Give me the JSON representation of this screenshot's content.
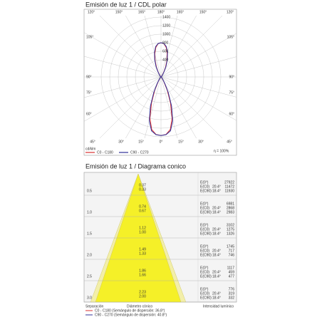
{
  "polar": {
    "title": "Emisión de luz 1 / CDL polar",
    "angle_labels_top": [
      "120°",
      "150°",
      "165°",
      "180°",
      "165°",
      "150°",
      "120°"
    ],
    "angle_labels_side": [
      "105°",
      "90°",
      "75°",
      "60°"
    ],
    "angle_labels_bottom": [
      "45°",
      "30°",
      "15°",
      "0°",
      "15°",
      "30°",
      "45°"
    ],
    "radial_ticks": [
      400,
      600,
      800,
      1000,
      1200,
      1400
    ],
    "unit": "cd/klm",
    "efficiency": "η = 100%",
    "angles": [
      0,
      5,
      10,
      15,
      20,
      25,
      30,
      40,
      60,
      90,
      120,
      140,
      150,
      155,
      160,
      165,
      170,
      175,
      180
    ],
    "series": [
      {
        "name": "C0 - C180",
        "color": "#d83030",
        "values": [
          1370,
          1350,
          1250,
          1000,
          650,
          350,
          150,
          40,
          10,
          0,
          10,
          40,
          130,
          250,
          400,
          560,
          700,
          780,
          800
        ]
      },
      {
        "name": "C90 - C270",
        "color": "#303098",
        "values": [
          1370,
          1355,
          1280,
          1060,
          720,
          400,
          180,
          50,
          12,
          0,
          12,
          50,
          150,
          280,
          430,
          590,
          720,
          785,
          800
        ]
      }
    ]
  },
  "cone": {
    "title": "Emisión de luz 1 / Diagrama conico",
    "e_label": "E(0°)",
    "c0_label": "E(C0)",
    "c90_label": "E(C90)",
    "c0_angle": "20.4°",
    "c90_angle": "18.4°",
    "rows": [
      {
        "height": 0.5,
        "d0": 0.37,
        "d90": 0.33,
        "e0": 27922,
        "ec0": 11472,
        "ec90": 11930
      },
      {
        "height": {
          "value": 1,
          "label": "1.0"
        },
        "d0": 0.74,
        "d90": 0.67,
        "e0": 6981,
        "ec0": 2868,
        "ec90": 2983
      },
      {
        "height": 1.5,
        "d0": 1.12,
        "d90": {
          "value": 1,
          "label": "1.00"
        },
        "e0": 3102,
        "ec0": 1275,
        "ec90": 1326
      },
      {
        "height": {
          "value": 2,
          "label": "2.0"
        },
        "d0": 1.49,
        "d90": 1.33,
        "e0": 1745,
        "ec0": 717,
        "ec90": 746
      },
      {
        "height": 2.5,
        "d0": 1.86,
        "d90": 1.66,
        "e0": 1117,
        "ec0": 459,
        "ec90": 477
      },
      {
        "height": {
          "value": 3,
          "label": "3.0"
        },
        "d0": 2.23,
        "d90": {
          "value": 2,
          "label": "2.00"
        },
        "e0": 776,
        "ec0": 319,
        "ec90": 332
      }
    ],
    "col_separation": "Separación",
    "col_diameter": "Diámetro cónico",
    "col_intensity": "Intensidad lumínico",
    "legend": [
      {
        "text": "C0 - C180 (Semángulo de dispersión: 36.8°)",
        "color": "#d83030"
      },
      {
        "text": "C90 - C270 (Semángulo de dispersión: 40.8°)",
        "color": "#303098"
      }
    ]
  }
}
